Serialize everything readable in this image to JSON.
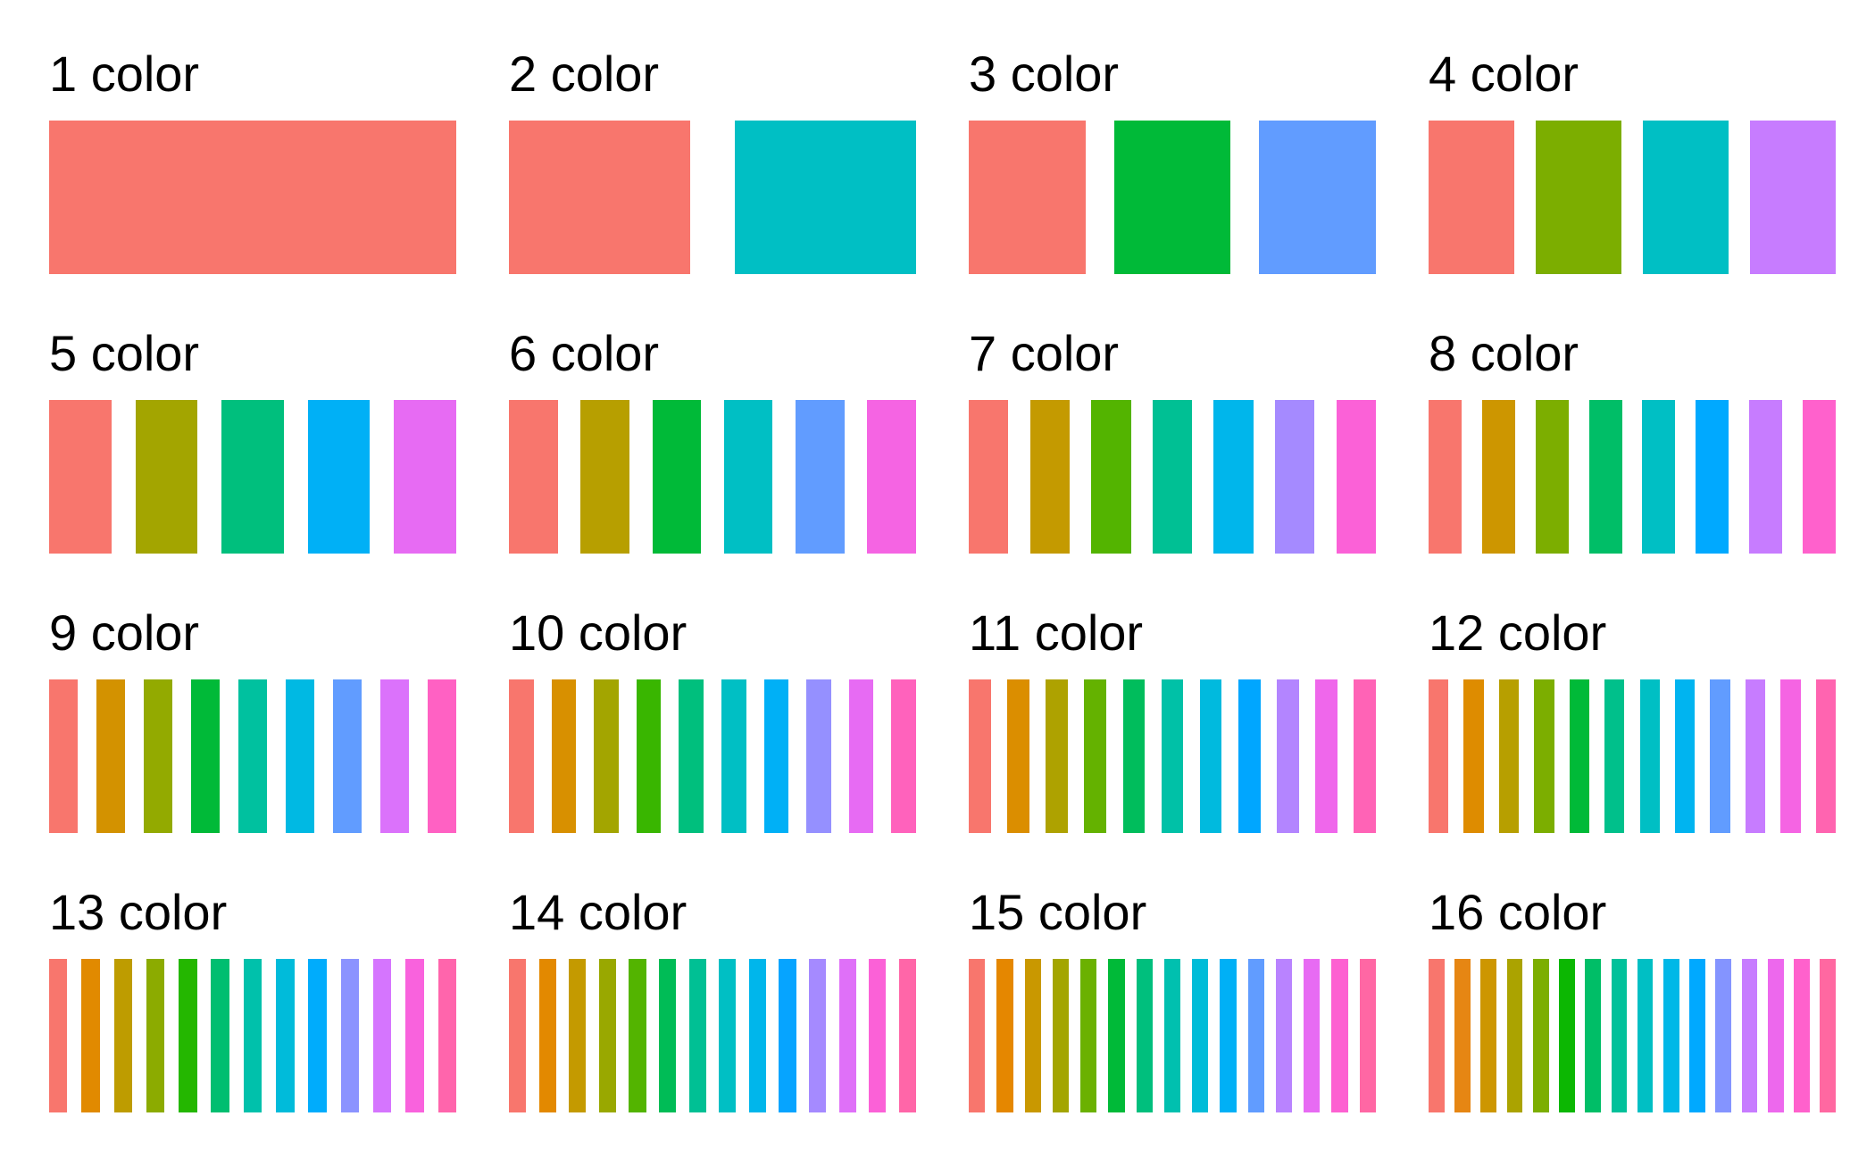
{
  "palettes": [
    {
      "label": "1 color",
      "colors": [
        "#F8766D"
      ]
    },
    {
      "label": "2 color",
      "colors": [
        "#F8766D",
        "#00BFC4"
      ]
    },
    {
      "label": "3 color",
      "colors": [
        "#F8766D",
        "#00BA38",
        "#619CFF"
      ]
    },
    {
      "label": "4 color",
      "colors": [
        "#F8766D",
        "#7CAE00",
        "#00BFC4",
        "#C77CFF"
      ]
    },
    {
      "label": "5 color",
      "colors": [
        "#F8766D",
        "#A3A500",
        "#00BF7D",
        "#00B0F6",
        "#E76BF3"
      ]
    },
    {
      "label": "6 color",
      "colors": [
        "#F8766D",
        "#B79F00",
        "#00BA38",
        "#00BFC4",
        "#619CFF",
        "#F564E3"
      ]
    },
    {
      "label": "7 color",
      "colors": [
        "#F8766D",
        "#C49A00",
        "#53B400",
        "#00C094",
        "#00B6EB",
        "#A58AFF",
        "#FB61D7"
      ]
    },
    {
      "label": "8 color",
      "colors": [
        "#F8766D",
        "#CD9600",
        "#7CAE00",
        "#00BE67",
        "#00BFC4",
        "#00A9FF",
        "#C77CFF",
        "#FF61CC"
      ]
    },
    {
      "label": "9 color",
      "colors": [
        "#F8766D",
        "#D39200",
        "#93AA00",
        "#00BA38",
        "#00C19F",
        "#00B9E3",
        "#619CFF",
        "#DB72FB",
        "#FF61C3"
      ]
    },
    {
      "label": "10 color",
      "colors": [
        "#F8766D",
        "#D89000",
        "#A3A500",
        "#39B600",
        "#00BF7D",
        "#00BFC4",
        "#00B0F6",
        "#9590FF",
        "#E76BF3",
        "#FF62BC"
      ]
    },
    {
      "label": "11 color",
      "colors": [
        "#F8766D",
        "#DB8E00",
        "#AEA200",
        "#64B200",
        "#00BD5C",
        "#00C1A7",
        "#00BADE",
        "#00A6FF",
        "#B385FF",
        "#EF67EB",
        "#FF63B6"
      ]
    },
    {
      "label": "12 color",
      "colors": [
        "#F8766D",
        "#DE8C00",
        "#B79F00",
        "#7CAE00",
        "#00BA38",
        "#00C08B",
        "#00BFC4",
        "#00B4F0",
        "#619CFF",
        "#C77CFF",
        "#F564E3",
        "#FF64B0"
      ]
    },
    {
      "label": "13 color",
      "colors": [
        "#F8766D",
        "#E18A00",
        "#BE9C00",
        "#8CAB00",
        "#24B700",
        "#00BE70",
        "#00C1AB",
        "#00BBDA",
        "#00ACFC",
        "#8B93FF",
        "#D575FE",
        "#F962DD",
        "#FF65AC"
      ]
    },
    {
      "label": "14 color",
      "colors": [
        "#F8766D",
        "#E38900",
        "#C49A00",
        "#99A800",
        "#53B400",
        "#00BC56",
        "#00C094",
        "#00BFC4",
        "#00B6EB",
        "#06A4FF",
        "#A58AFF",
        "#DF70F8",
        "#FB61D7",
        "#FF66A8"
      ]
    },
    {
      "label": "15 color",
      "colors": [
        "#F8766D",
        "#E58700",
        "#C99800",
        "#A3A500",
        "#6BB100",
        "#00BA38",
        "#00BF7D",
        "#00C0AF",
        "#00BCD8",
        "#00B0F6",
        "#619CFF",
        "#B983FF",
        "#E76BF3",
        "#FD61D1",
        "#FF67A4"
      ]
    },
    {
      "label": "16 color",
      "colors": [
        "#F8766D",
        "#E68613",
        "#CD9600",
        "#ABA300",
        "#7CAE00",
        "#0CB702",
        "#00BE67",
        "#00C19A",
        "#00BFC4",
        "#00B8E7",
        "#00A9FF",
        "#8494FF",
        "#C77CFF",
        "#ED68ED",
        "#FF61CC",
        "#FF68A1"
      ]
    }
  ]
}
